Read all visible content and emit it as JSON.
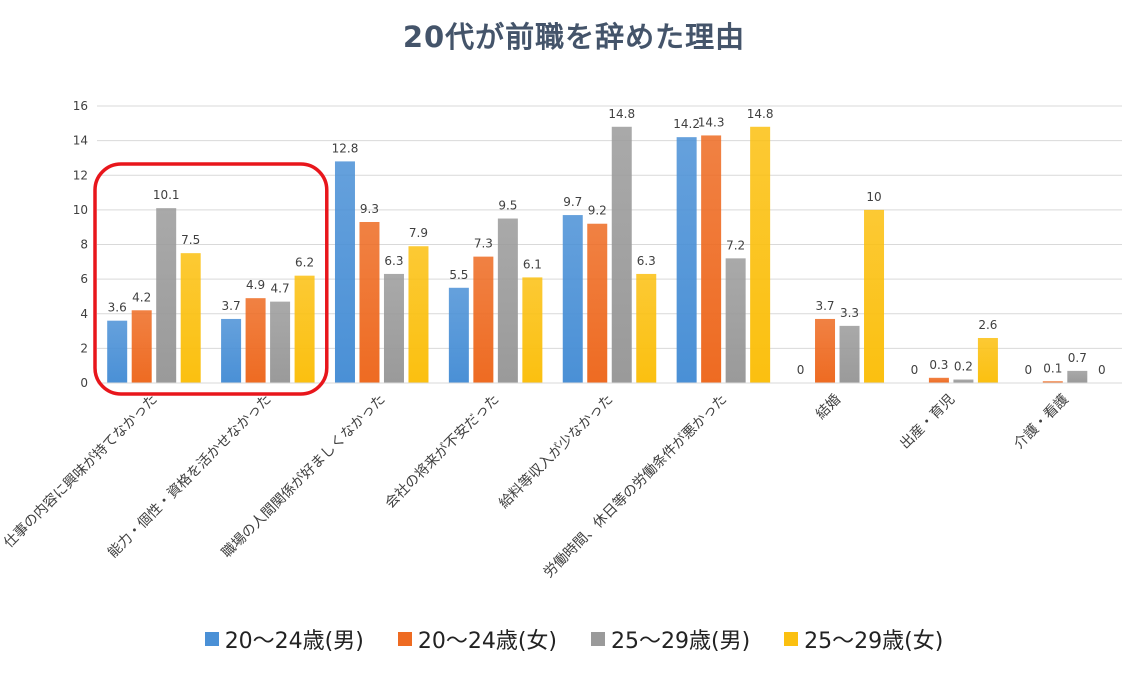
{
  "chart_data": {
    "type": "bar",
    "title": "20代が前職を辞めた理由",
    "categories": [
      "仕事の内容に興味が持てなかった",
      "能力・個性・資格を活かせなかった",
      "職場の人間関係が好ましくなかった",
      "会社の将来が不安だった",
      "給料等収入が少なかった",
      "労働時間、休日等の労働条件が悪かった",
      "結婚",
      "出産・育児",
      "介護・看護"
    ],
    "series": [
      {
        "name": "20～24歳(男)",
        "values": [
          3.6,
          3.7,
          12.8,
          5.5,
          9.7,
          14.2,
          0,
          0,
          0
        ],
        "color": "#4a90d6"
      },
      {
        "name": "20～24歳(女)",
        "values": [
          4.2,
          4.9,
          9.3,
          7.3,
          9.2,
          14.3,
          3.7,
          0.3,
          0.1
        ],
        "color": "#ee6b22"
      },
      {
        "name": "25～29歳(男)",
        "values": [
          10.1,
          4.7,
          6.3,
          9.5,
          14.8,
          7.2,
          3.3,
          0.2,
          0.7
        ],
        "color": "#9a9a9a"
      },
      {
        "name": "25～29歳(女)",
        "values": [
          7.5,
          6.2,
          7.9,
          6.1,
          6.3,
          14.8,
          10,
          2.6,
          0
        ],
        "color": "#fbc010"
      }
    ],
    "ylim": [
      0,
      16
    ],
    "yticks": [
      "0",
      "2",
      "4",
      "6",
      "8",
      "10",
      "12",
      "14",
      "16"
    ],
    "grid": true,
    "legend_position": "bottom",
    "highlight": {
      "categories": [
        0,
        1
      ],
      "color": "#e8161c"
    }
  }
}
